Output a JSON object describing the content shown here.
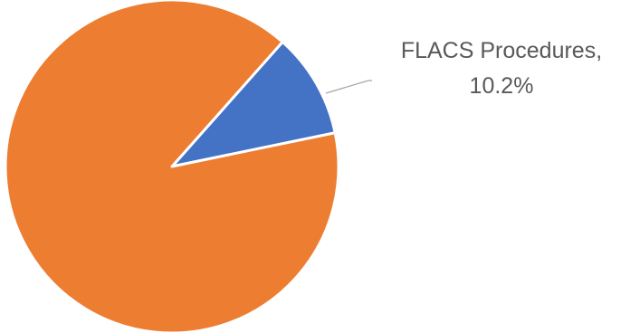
{
  "chart_data": {
    "type": "pie",
    "title": "",
    "slices": [
      {
        "label": "FLACS Procedures",
        "value": 10.2,
        "color": "#4472C4",
        "data_label": "FLACS Procedures,",
        "data_label_line2": "10.2%"
      },
      {
        "label": "",
        "value": 89.8,
        "color": "#ED7D31",
        "data_label": "",
        "data_label_line2": ""
      }
    ],
    "legend": "none",
    "grid": false
  }
}
